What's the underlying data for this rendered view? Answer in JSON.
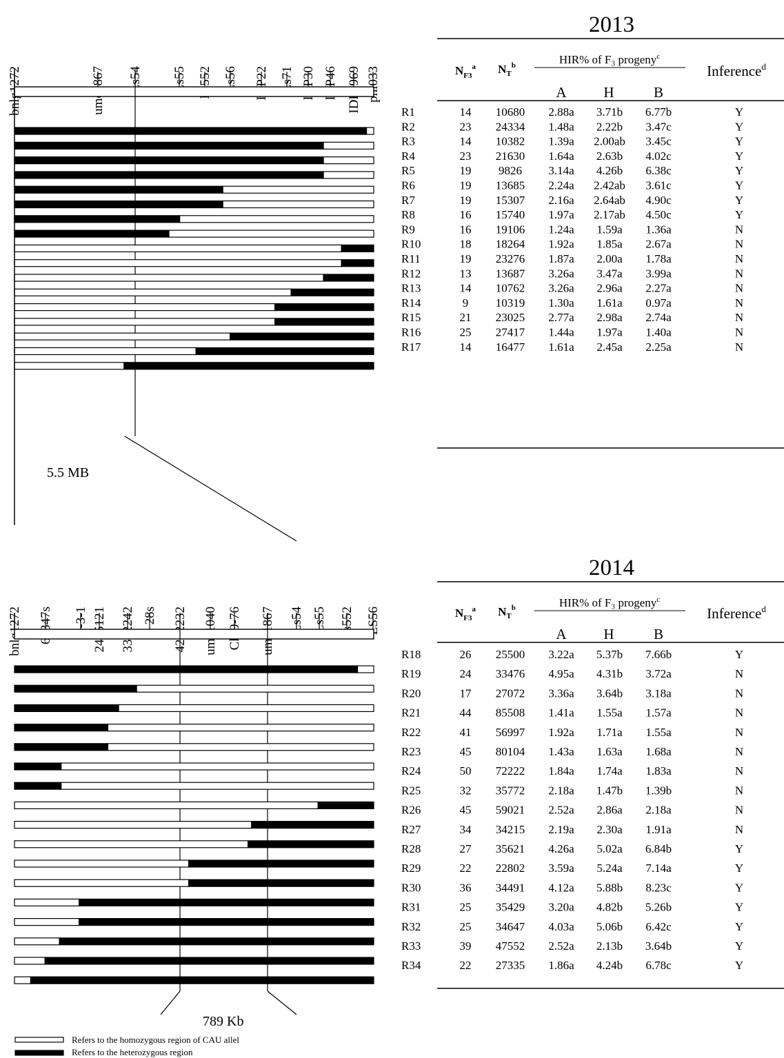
{
  "panel_2013": {
    "year": "2013",
    "markers": [
      "bnlg1272",
      "umc1867",
      "Ls54",
      "Ls55",
      "Ls552",
      "Ls56",
      "IDP22",
      "Ls71",
      "IDP30",
      "IDP46",
      "IDP1969",
      "phi033"
    ],
    "region_size": "5.5 MB",
    "rows": [
      {
        "id": "R1",
        "segments": [
          [
            "het",
            0.98
          ],
          [
            "cau",
            0.02
          ]
        ],
        "nf3": "14",
        "nt": "10680",
        "a": "2.88a",
        "h": "3.71b",
        "b": "6.77b",
        "inference": "Y"
      },
      {
        "id": "R2",
        "segments": [
          [
            "het",
            0.86
          ],
          [
            "cau",
            0.14
          ]
        ],
        "nf3": "23",
        "nt": "24334",
        "a": "1.48a",
        "h": "2.22b",
        "b": "3.47c",
        "inference": "Y"
      },
      {
        "id": "R3",
        "segments": [
          [
            "het",
            0.86
          ],
          [
            "cau",
            0.14
          ]
        ],
        "nf3": "14",
        "nt": "10382",
        "a": "1.39a",
        "h": "2.00ab",
        "b": "3.45c",
        "inference": "Y"
      },
      {
        "id": "R4",
        "segments": [
          [
            "het",
            0.86
          ],
          [
            "cau",
            0.14
          ]
        ],
        "nf3": "23",
        "nt": "21630",
        "a": "1.64a",
        "h": "2.63b",
        "b": "4.02c",
        "inference": "Y"
      },
      {
        "id": "R5",
        "segments": [
          [
            "het",
            0.58
          ],
          [
            "cau",
            0.42
          ]
        ],
        "nf3": "19",
        "nt": "9826",
        "a": "3.14a",
        "h": "4.26b",
        "b": "6.38c",
        "inference": "Y"
      },
      {
        "id": "R6",
        "segments": [
          [
            "het",
            0.58
          ],
          [
            "cau",
            0.42
          ]
        ],
        "nf3": "19",
        "nt": "13685",
        "a": "2.24a",
        "h": "2.42ab",
        "b": "3.61c",
        "inference": "Y"
      },
      {
        "id": "R7",
        "segments": [
          [
            "het",
            0.46
          ],
          [
            "cau",
            0.54
          ]
        ],
        "nf3": "19",
        "nt": "15307",
        "a": "2.16a",
        "h": "2.64ab",
        "b": "4.90c",
        "inference": "Y"
      },
      {
        "id": "R8",
        "segments": [
          [
            "het",
            0.43
          ],
          [
            "cau",
            0.57
          ]
        ],
        "nf3": "16",
        "nt": "15740",
        "a": "1.97a",
        "h": "2.17ab",
        "b": "4.50c",
        "inference": "Y"
      },
      {
        "id": "R9",
        "segments": [
          [
            "cau",
            0.91
          ],
          [
            "het",
            0.09
          ]
        ],
        "nf3": "16",
        "nt": "19106",
        "a": "1.24a",
        "h": "1.59a",
        "b": "1.36a",
        "inference": "N"
      },
      {
        "id": "R10",
        "segments": [
          [
            "cau",
            0.91
          ],
          [
            "het",
            0.09
          ]
        ],
        "nf3": "18",
        "nt": "18264",
        "a": "1.92a",
        "h": "1.85a",
        "b": "2.67a",
        "inference": "N"
      },
      {
        "id": "R11",
        "segments": [
          [
            "cau",
            0.86
          ],
          [
            "het",
            0.14
          ]
        ],
        "nf3": "19",
        "nt": "23276",
        "a": "1.87a",
        "h": "2.00a",
        "b": "1.78a",
        "inference": "N"
      },
      {
        "id": "R12",
        "segments": [
          [
            "cau",
            0.77
          ],
          [
            "het",
            0.23
          ]
        ],
        "nf3": "13",
        "nt": "13687",
        "a": "3.26a",
        "h": "3.47a",
        "b": "3.99a",
        "inference": "N"
      },
      {
        "id": "R13",
        "segments": [
          [
            "cau",
            0.725
          ],
          [
            "het",
            0.275
          ]
        ],
        "nf3": "14",
        "nt": "10762",
        "a": "3.26a",
        "h": "2.96a",
        "b": "2.27a",
        "inference": "N"
      },
      {
        "id": "R14",
        "segments": [
          [
            "cau",
            0.725
          ],
          [
            "het",
            0.275
          ]
        ],
        "nf3": "9",
        "nt": "10319",
        "a": "1.30a",
        "h": "1.61a",
        "b": "0.97a",
        "inference": "N"
      },
      {
        "id": "R15",
        "segments": [
          [
            "cau",
            0.6
          ],
          [
            "het",
            0.4
          ]
        ],
        "nf3": "21",
        "nt": "23025",
        "a": "2.77a",
        "h": "2.98a",
        "b": "2.74a",
        "inference": "N"
      },
      {
        "id": "R16",
        "segments": [
          [
            "cau",
            0.505
          ],
          [
            "het",
            0.495
          ]
        ],
        "nf3": "25",
        "nt": "27417",
        "a": "1.44a",
        "h": "1.97a",
        "b": "1.40a",
        "inference": "N"
      },
      {
        "id": "R17",
        "segments": [
          [
            "cau",
            0.305
          ],
          [
            "het",
            0.695
          ]
        ],
        "nf3": "14",
        "nt": "16477",
        "a": "1.61a",
        "h": "2.45a",
        "b": "2.25a",
        "inference": "N"
      }
    ]
  },
  "panel_2014": {
    "year": "2014",
    "markers": [
      "bnlg1272",
      "66347s",
      "9-3-1",
      "2485121",
      "3312242",
      "28s",
      "4292232",
      "umc1040",
      "Chr9-76",
      "umc1867",
      "Ls54",
      "Ls55",
      "Ls552",
      "LS56"
    ],
    "region_size": "789 Kb",
    "rows": [
      {
        "id": "R18",
        "segments": [
          [
            "het",
            0.955
          ],
          [
            "cau",
            0.045
          ]
        ],
        "nf3": "26",
        "nt": "25500",
        "a": "3.22a",
        "h": "5.37b",
        "b": "7.66b",
        "inference": "Y"
      },
      {
        "id": "R19",
        "segments": [
          [
            "het",
            0.34
          ],
          [
            "cau",
            0.66
          ]
        ],
        "nf3": "24",
        "nt": "33476",
        "a": "4.95a",
        "h": "4.31b",
        "b": "3.72a",
        "inference": "N"
      },
      {
        "id": "R20",
        "segments": [
          [
            "het",
            0.29
          ],
          [
            "cau",
            0.71
          ]
        ],
        "nf3": "17",
        "nt": "27072",
        "a": "3.36a",
        "h": "3.64b",
        "b": "3.18a",
        "inference": "N"
      },
      {
        "id": "R21",
        "segments": [
          [
            "het",
            0.26
          ],
          [
            "cau",
            0.74
          ]
        ],
        "nf3": "44",
        "nt": "85508",
        "a": "1.41a",
        "h": "1.55a",
        "b": "1.57a",
        "inference": "N"
      },
      {
        "id": "R22",
        "segments": [
          [
            "het",
            0.26
          ],
          [
            "cau",
            0.74
          ]
        ],
        "nf3": "41",
        "nt": "56997",
        "a": "1.92a",
        "h": "1.71a",
        "b": "1.55a",
        "inference": "N"
      },
      {
        "id": "R23",
        "segments": [
          [
            "het",
            0.13
          ],
          [
            "cau",
            0.87
          ]
        ],
        "nf3": "45",
        "nt": "80104",
        "a": "1.43a",
        "h": "1.63a",
        "b": "1.68a",
        "inference": "N"
      },
      {
        "id": "R24",
        "segments": [
          [
            "het",
            0.13
          ],
          [
            "cau",
            0.87
          ]
        ],
        "nf3": "50",
        "nt": "72222",
        "a": "1.84a",
        "h": "1.74a",
        "b": "1.83a",
        "inference": "N"
      },
      {
        "id": "R25",
        "segments": [
          [
            "cau",
            0.845
          ],
          [
            "het",
            0.155
          ]
        ],
        "nf3": "32",
        "nt": "35772",
        "a": "2.18a",
        "h": "1.47b",
        "b": "1.39b",
        "inference": "N"
      },
      {
        "id": "R26",
        "segments": [
          [
            "cau",
            0.66
          ],
          [
            "het",
            0.34
          ]
        ],
        "nf3": "45",
        "nt": "59021",
        "a": "2.52a",
        "h": "2.86a",
        "b": "2.18a",
        "inference": "N"
      },
      {
        "id": "R27",
        "segments": [
          [
            "cau",
            0.65
          ],
          [
            "het",
            0.35
          ]
        ],
        "nf3": "34",
        "nt": "34215",
        "a": "2.19a",
        "h": "2.30a",
        "b": "1.91a",
        "inference": "N"
      },
      {
        "id": "R28",
        "segments": [
          [
            "cau",
            0.485
          ],
          [
            "het",
            0.515
          ]
        ],
        "nf3": "27",
        "nt": "35621",
        "a": "4.26a",
        "h": "5.02a",
        "b": "6.84b",
        "inference": "Y"
      },
      {
        "id": "R29",
        "segments": [
          [
            "cau",
            0.485
          ],
          [
            "het",
            0.515
          ]
        ],
        "nf3": "22",
        "nt": "22802",
        "a": "3.59a",
        "h": "5.24a",
        "b": "7.14a",
        "inference": "Y"
      },
      {
        "id": "R30",
        "segments": [
          [
            "cau",
            0.18
          ],
          [
            "het",
            0.82
          ]
        ],
        "nf3": "36",
        "nt": "34491",
        "a": "4.12a",
        "h": "5.88b",
        "b": "8.23c",
        "inference": "Y"
      },
      {
        "id": "R31",
        "segments": [
          [
            "cau",
            0.18
          ],
          [
            "het",
            0.82
          ]
        ],
        "nf3": "25",
        "nt": "35429",
        "a": "3.20a",
        "h": "4.82b",
        "b": "5.26b",
        "inference": "Y"
      },
      {
        "id": "R32",
        "segments": [
          [
            "cau",
            0.125
          ],
          [
            "het",
            0.875
          ]
        ],
        "nf3": "25",
        "nt": "34647",
        "a": "4.03a",
        "h": "5.06b",
        "b": "6.42c",
        "inference": "Y"
      },
      {
        "id": "R33",
        "segments": [
          [
            "cau",
            0.085
          ],
          [
            "het",
            0.915
          ]
        ],
        "nf3": "39",
        "nt": "47552",
        "a": "2.52a",
        "h": "2.13b",
        "b": "3.64b",
        "inference": "Y"
      },
      {
        "id": "R34",
        "segments": [
          [
            "cau",
            0.045
          ],
          [
            "het",
            0.955
          ]
        ],
        "nf3": "22",
        "nt": "27335",
        "a": "1.86a",
        "h": "4.24b",
        "b": "6.78c",
        "inference": "Y"
      }
    ]
  },
  "table_header": {
    "nf3": "N",
    "nf3_sub": "F3",
    "nf3_sup": "a",
    "nt": "N",
    "nt_sub": "T",
    "nt_sup": "b",
    "hir_label": "HIR% of F₃  progeny",
    "hir_sup": "c",
    "col_a": "A",
    "col_h": "H",
    "col_b": "B",
    "inference": "Inference",
    "inference_sup": "d"
  },
  "legend": {
    "cau": "Refers to the homozygous region of CAU allel",
    "het": "Refers to the heterozygous region"
  }
}
